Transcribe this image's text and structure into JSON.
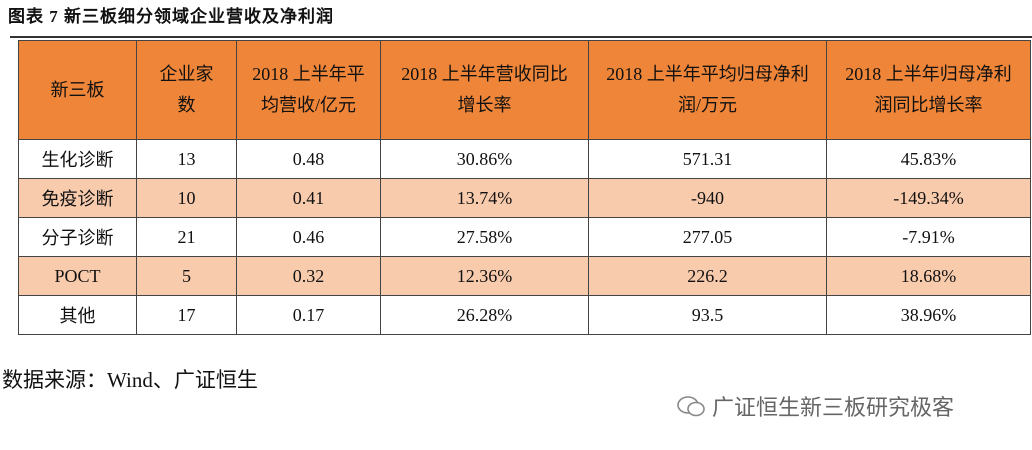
{
  "title": "图表 7 新三板细分领域企业营收及净利润",
  "table": {
    "header": [
      "新三板",
      "企业家数",
      "2018 上半年平均营收/亿元",
      "2018 上半年营收同比增长率",
      "2018 上半年平均归母净利润/万元",
      "2018 上半年归母净利润同比增长率"
    ],
    "rows": [
      [
        "生化诊断",
        "13",
        "0.48",
        "30.86%",
        "571.31",
        "45.83%"
      ],
      [
        "免疫诊断",
        "10",
        "0.41",
        "13.74%",
        "-940",
        "-149.34%"
      ],
      [
        "分子诊断",
        "21",
        "0.46",
        "27.58%",
        "277.05",
        "-7.91%"
      ],
      [
        "POCT",
        "5",
        "0.32",
        "12.36%",
        "226.2",
        "18.68%"
      ],
      [
        "其他",
        "17",
        "0.17",
        "26.28%",
        "93.5",
        "38.96%"
      ]
    ]
  },
  "source": "数据来源：Wind、广证恒生",
  "watermark": "广证恒生新三板研究极客"
}
